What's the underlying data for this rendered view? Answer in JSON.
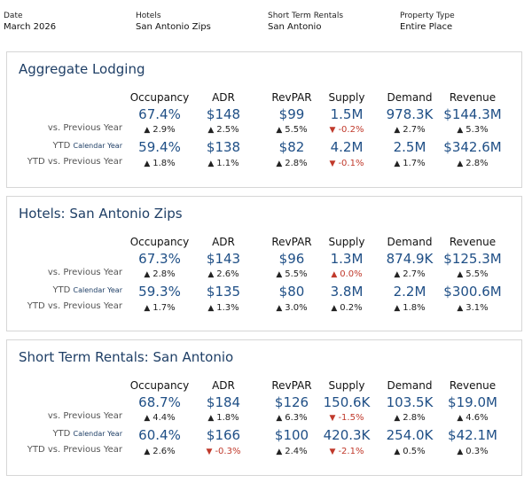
{
  "filters": [
    {
      "label": "Date",
      "value": "March 2026"
    },
    {
      "label": "Hotels",
      "value": "San Antonio Zips"
    },
    {
      "label": "Short Term Rentals",
      "value": "San Antonio"
    },
    {
      "label": "Property Type",
      "value": "Entire Place"
    }
  ],
  "columns": [
    "Occupancy",
    "ADR",
    "RevPAR",
    "Supply",
    "Demand",
    "Revenue"
  ],
  "row_labels": {
    "vs_prev": "vs. Previous Year",
    "ytd_prefix": "YTD",
    "ytd_suffix": "Calendar Year",
    "ytd_vs_prev": "YTD vs. Previous Year"
  },
  "cards": [
    {
      "title": "Aggregate Lodging",
      "current": [
        "67.4%",
        "$148",
        "$99",
        "1.5M",
        "978.3K",
        "$144.3M"
      ],
      "vs_prev": [
        {
          "dir": "up",
          "text": "2.9%"
        },
        {
          "dir": "up",
          "text": "2.5%"
        },
        {
          "dir": "up",
          "text": "5.5%"
        },
        {
          "dir": "down",
          "text": "-0.2%"
        },
        {
          "dir": "up",
          "text": "2.7%"
        },
        {
          "dir": "up",
          "text": "5.3%"
        }
      ],
      "ytd": [
        "59.4%",
        "$138",
        "$82",
        "4.2M",
        "2.5M",
        "$342.6M"
      ],
      "ytd_vs_prev": [
        {
          "dir": "up",
          "text": "1.8%"
        },
        {
          "dir": "up",
          "text": "1.1%"
        },
        {
          "dir": "up",
          "text": "2.8%"
        },
        {
          "dir": "down",
          "text": "-0.1%"
        },
        {
          "dir": "up",
          "text": "1.7%"
        },
        {
          "dir": "up",
          "text": "2.8%"
        }
      ]
    },
    {
      "title": "Hotels: San Antonio Zips",
      "current": [
        "67.3%",
        "$143",
        "$96",
        "1.3M",
        "874.9K",
        "$125.3M"
      ],
      "vs_prev": [
        {
          "dir": "up",
          "text": "2.8%"
        },
        {
          "dir": "up",
          "text": "2.6%"
        },
        {
          "dir": "up",
          "text": "5.5%"
        },
        {
          "dir": "up-red",
          "text": "0.0%"
        },
        {
          "dir": "up",
          "text": "2.7%"
        },
        {
          "dir": "up",
          "text": "5.5%"
        }
      ],
      "ytd": [
        "59.3%",
        "$135",
        "$80",
        "3.8M",
        "2.2M",
        "$300.6M"
      ],
      "ytd_vs_prev": [
        {
          "dir": "up",
          "text": "1.7%"
        },
        {
          "dir": "up",
          "text": "1.3%"
        },
        {
          "dir": "up",
          "text": "3.0%"
        },
        {
          "dir": "up",
          "text": "0.2%"
        },
        {
          "dir": "up",
          "text": "1.8%"
        },
        {
          "dir": "up",
          "text": "3.1%"
        }
      ]
    },
    {
      "title": "Short Term Rentals: San Antonio",
      "current": [
        "68.7%",
        "$184",
        "$126",
        "150.6K",
        "103.5K",
        "$19.0M"
      ],
      "vs_prev": [
        {
          "dir": "up",
          "text": "4.4%"
        },
        {
          "dir": "up",
          "text": "1.8%"
        },
        {
          "dir": "up",
          "text": "6.3%"
        },
        {
          "dir": "down",
          "text": "-1.5%"
        },
        {
          "dir": "up",
          "text": "2.8%"
        },
        {
          "dir": "up",
          "text": "4.6%"
        }
      ],
      "ytd": [
        "60.4%",
        "$166",
        "$100",
        "420.3K",
        "254.0K",
        "$42.1M"
      ],
      "ytd_vs_prev": [
        {
          "dir": "up",
          "text": "2.6%"
        },
        {
          "dir": "down",
          "text": "-0.3%"
        },
        {
          "dir": "up",
          "text": "2.4%"
        },
        {
          "dir": "down",
          "text": "-2.1%"
        },
        {
          "dir": "up",
          "text": "0.5%"
        },
        {
          "dir": "up",
          "text": "0.3%"
        }
      ]
    }
  ],
  "colors": {
    "title": "#1f3f66",
    "value": "#1f4f86",
    "negative": "#c0392b",
    "border": "#d6d6d6"
  },
  "icons": {
    "up": "triangle-up-icon",
    "down": "triangle-down-icon"
  }
}
